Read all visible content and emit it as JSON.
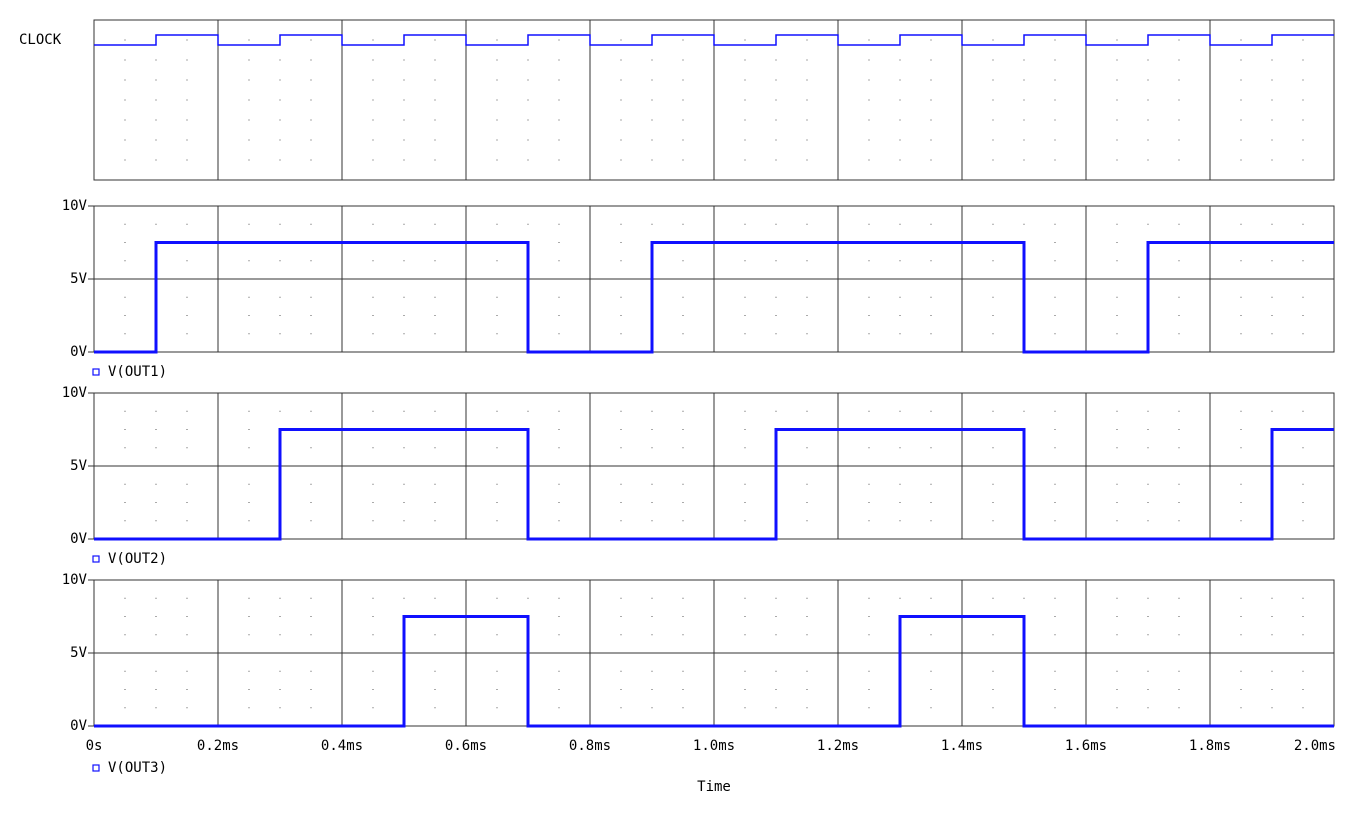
{
  "chart_data": [
    {
      "type": "digital",
      "x": [
        0,
        0.1,
        0.1,
        0.2,
        0.2,
        0.3,
        0.3,
        0.4,
        0.4,
        0.5,
        0.5,
        0.6,
        0.6,
        0.7,
        0.7,
        0.8,
        0.8,
        0.9,
        0.9,
        1.0,
        1.0,
        1.1,
        1.1,
        1.2,
        1.2,
        1.3,
        1.3,
        1.4,
        1.4,
        1.5,
        1.5,
        1.6,
        1.6,
        1.7,
        1.7,
        1.8,
        1.8,
        1.9,
        1.9,
        2.0
      ],
      "series": [
        {
          "name": "CLOCK",
          "color": "#1010ff",
          "values": [
            0,
            0,
            1,
            1,
            0,
            0,
            1,
            1,
            0,
            0,
            1,
            1,
            0,
            0,
            1,
            1,
            0,
            0,
            1,
            1,
            0,
            0,
            1,
            1,
            0,
            0,
            1,
            1,
            0,
            0,
            1,
            1,
            0,
            0,
            1,
            1,
            0,
            0,
            1,
            1
          ]
        }
      ],
      "xlim": [
        0,
        2
      ],
      "xticks": [
        0,
        0.2,
        0.4,
        0.6,
        0.8,
        1.0,
        1.2,
        1.4,
        1.6,
        1.8,
        2.0
      ]
    },
    {
      "type": "line",
      "x": [
        0,
        0.1,
        0.1,
        0.7,
        0.7,
        0.9,
        0.9,
        1.5,
        1.5,
        1.7,
        1.7,
        2.0
      ],
      "series": [
        {
          "name": "V(OUT1)",
          "color": "#1010ff",
          "values": [
            0,
            0,
            7.5,
            7.5,
            0,
            0,
            7.5,
            7.5,
            0,
            0,
            7.5,
            7.5
          ]
        }
      ],
      "xlim": [
        0,
        2
      ],
      "xticks": [
        0,
        0.2,
        0.4,
        0.6,
        0.8,
        1.0,
        1.2,
        1.4,
        1.6,
        1.8,
        2.0
      ],
      "ylim": [
        0,
        10
      ],
      "yticks": [
        {
          "value": 0,
          "label": "0V"
        },
        {
          "value": 5,
          "label": "5V"
        },
        {
          "value": 10,
          "label": "10V"
        }
      ]
    },
    {
      "type": "line",
      "x": [
        0,
        0.3,
        0.3,
        0.7,
        0.7,
        1.1,
        1.1,
        1.5,
        1.5,
        1.9,
        1.9,
        2.0
      ],
      "series": [
        {
          "name": "V(OUT2)",
          "color": "#1010ff",
          "values": [
            0,
            0,
            7.5,
            7.5,
            0,
            0,
            7.5,
            7.5,
            0,
            0,
            7.5,
            7.5
          ]
        }
      ],
      "xlim": [
        0,
        2
      ],
      "xticks": [
        0,
        0.2,
        0.4,
        0.6,
        0.8,
        1.0,
        1.2,
        1.4,
        1.6,
        1.8,
        2.0
      ],
      "ylim": [
        0,
        10
      ],
      "yticks": [
        {
          "value": 0,
          "label": "0V"
        },
        {
          "value": 5,
          "label": "5V"
        },
        {
          "value": 10,
          "label": "10V"
        }
      ]
    },
    {
      "type": "line",
      "x": [
        0,
        0.5,
        0.5,
        0.7,
        0.7,
        1.3,
        1.3,
        1.5,
        1.5,
        2.0
      ],
      "series": [
        {
          "name": "V(OUT3)",
          "color": "#1010ff",
          "values": [
            0,
            0,
            7.5,
            7.5,
            0,
            0,
            7.5,
            7.5,
            0,
            0
          ]
        }
      ],
      "xlim": [
        0,
        2
      ],
      "xticks": [
        {
          "value": 0,
          "label": "0s"
        },
        {
          "value": 0.2,
          "label": "0.2ms"
        },
        {
          "value": 0.4,
          "label": "0.4ms"
        },
        {
          "value": 0.6,
          "label": "0.6ms"
        },
        {
          "value": 0.8,
          "label": "0.8ms"
        },
        {
          "value": 1.0,
          "label": "1.0ms"
        },
        {
          "value": 1.2,
          "label": "1.2ms"
        },
        {
          "value": 1.4,
          "label": "1.4ms"
        },
        {
          "value": 1.6,
          "label": "1.6ms"
        },
        {
          "value": 1.8,
          "label": "1.8ms"
        },
        {
          "value": 2.0,
          "label": "2.0ms"
        }
      ],
      "ylim": [
        0,
        10
      ],
      "yticks": [
        {
          "value": 0,
          "label": "0V"
        },
        {
          "value": 5,
          "label": "5V"
        },
        {
          "value": 10,
          "label": "10V"
        }
      ],
      "xlabel": "Time"
    }
  ]
}
